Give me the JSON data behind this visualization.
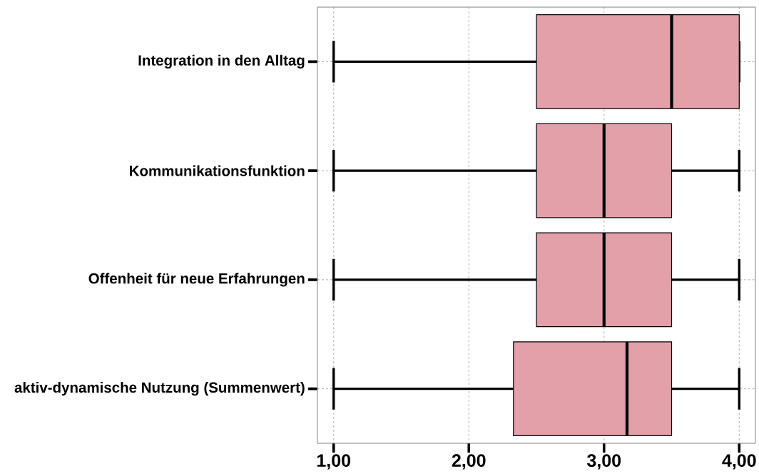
{
  "chart_data": {
    "type": "box",
    "orientation": "horizontal",
    "categories": [
      "Integration in den Alltag",
      "Kommunikationsfunktion",
      "Offenheit für neue Erfahrungen",
      "aktiv-dynamische Nutzung (Summenwert)"
    ],
    "boxes": [
      {
        "low": 1,
        "q1": 2.5,
        "median": 3.5,
        "q3": 4,
        "high": 4
      },
      {
        "low": 1,
        "q1": 2.5,
        "median": 3,
        "q3": 3.5,
        "high": 4
      },
      {
        "low": 1,
        "q1": 2.5,
        "median": 3,
        "q3": 3.5,
        "high": 4
      },
      {
        "low": 1,
        "q1": 2.33,
        "median": 3.17,
        "q3": 3.5,
        "high": 4
      }
    ],
    "color": "#e3a0a9",
    "xlim": [
      0.88,
      4.12
    ],
    "xticks": [
      {
        "value": 1,
        "label": "1,00"
      },
      {
        "value": 2,
        "label": "2,00"
      },
      {
        "value": 3,
        "label": "3,00"
      },
      {
        "value": 4,
        "label": "4,00"
      }
    ],
    "grid": true
  }
}
